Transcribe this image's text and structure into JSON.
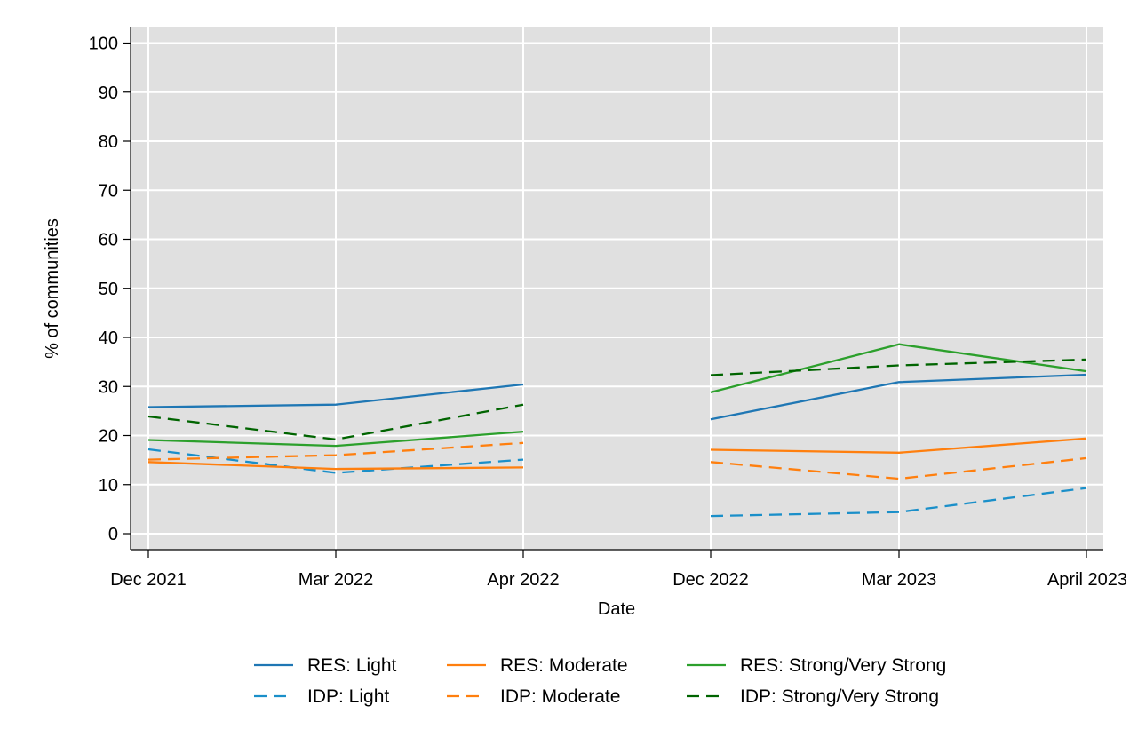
{
  "chart_data": {
    "type": "line",
    "title": "",
    "xlabel": "Date",
    "ylabel": "% of communities",
    "categories": [
      "Dec 2021",
      "Mar 2022",
      "Apr 2022",
      "Dec 2022",
      "Mar 2023",
      "April 2023"
    ],
    "yticks": [
      0,
      10,
      20,
      30,
      40,
      50,
      60,
      70,
      80,
      90,
      100
    ],
    "ylim": [
      -3,
      103
    ],
    "grid": true,
    "legend_position": "bottom",
    "series": [
      {
        "name": "RES: Light",
        "color": "#1f77b4",
        "dash": "solid",
        "values": [
          25.8,
          26.3,
          30.4,
          23.3,
          30.9,
          32.4
        ]
      },
      {
        "name": "IDP: Light",
        "color": "#1a8fc9",
        "dash": "dashed",
        "values": [
          17.2,
          12.4,
          15.1,
          3.6,
          4.4,
          9.3
        ]
      },
      {
        "name": "RES: Moderate",
        "color": "#ff7f0e",
        "dash": "solid",
        "values": [
          14.6,
          13.2,
          13.5,
          17.1,
          16.5,
          19.4
        ]
      },
      {
        "name": "IDP: Moderate",
        "color": "#ff7f0e",
        "dash": "dashed",
        "values": [
          15.1,
          16.0,
          18.5,
          14.6,
          11.2,
          15.4
        ]
      },
      {
        "name": "RES: Strong/Very Strong",
        "color": "#2ca02c",
        "dash": "solid",
        "values": [
          19.1,
          17.9,
          20.8,
          28.8,
          38.6,
          33.1
        ]
      },
      {
        "name": "IDP: Strong/Very Strong",
        "color": "#006400",
        "dash": "dashed",
        "values": [
          23.9,
          19.2,
          26.3,
          32.3,
          34.3,
          35.5
        ]
      }
    ],
    "segments": [
      [
        0,
        2
      ],
      [
        3,
        5
      ]
    ]
  }
}
